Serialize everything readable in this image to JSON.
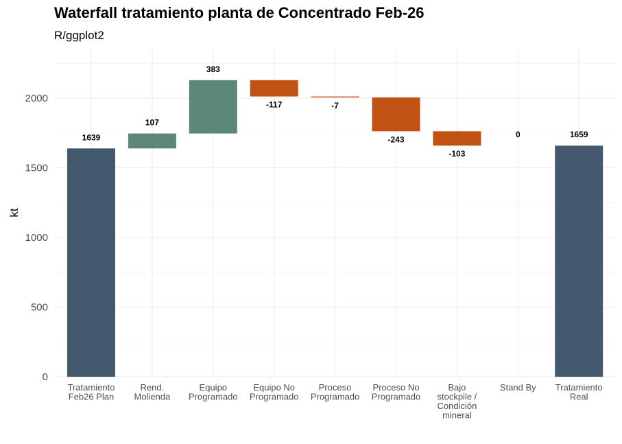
{
  "chart_data": {
    "type": "bar",
    "subtype": "waterfall",
    "title": "Waterfall tratamiento planta de Concentrado Feb-26",
    "subtitle": "R/ggplot2",
    "xlabel": "",
    "ylabel": "kt",
    "ylim": [
      0,
      2300
    ],
    "yticks": [
      0,
      500,
      1000,
      1500,
      2000
    ],
    "grid": true,
    "categories": [
      [
        "Tratamiento",
        "Feb26 Plan"
      ],
      [
        "Rend.",
        "Molienda"
      ],
      [
        "Equipo",
        "Programado"
      ],
      [
        "Equipo No",
        "Programado"
      ],
      [
        "Proceso",
        "Programado"
      ],
      [
        "Proceso No",
        "Programado"
      ],
      [
        "Bajo",
        "stockpile /",
        "Condición",
        "mineral"
      ],
      [
        "Stand By"
      ],
      [
        "Tratamiento",
        "Real"
      ]
    ],
    "bars": [
      {
        "kind": "total",
        "start": 0,
        "end": 1639,
        "label": "1639"
      },
      {
        "kind": "increase",
        "start": 1639,
        "end": 1746,
        "label": "107"
      },
      {
        "kind": "increase",
        "start": 1746,
        "end": 2129,
        "label": "383"
      },
      {
        "kind": "decrease",
        "start": 2129,
        "end": 2012,
        "label": "-117"
      },
      {
        "kind": "decrease",
        "start": 2012,
        "end": 2005,
        "label": "-7"
      },
      {
        "kind": "decrease",
        "start": 2005,
        "end": 1762,
        "label": "-243"
      },
      {
        "kind": "decrease",
        "start": 1762,
        "end": 1659,
        "label": "-103"
      },
      {
        "kind": "zero",
        "start": 1659,
        "end": 1659,
        "label": "0"
      },
      {
        "kind": "total",
        "start": 0,
        "end": 1659,
        "label": "1659"
      }
    ],
    "colors": {
      "total": "#44586e",
      "increase": "#5d867b",
      "decrease": "#c25214",
      "grid": "#ebebeb"
    }
  }
}
